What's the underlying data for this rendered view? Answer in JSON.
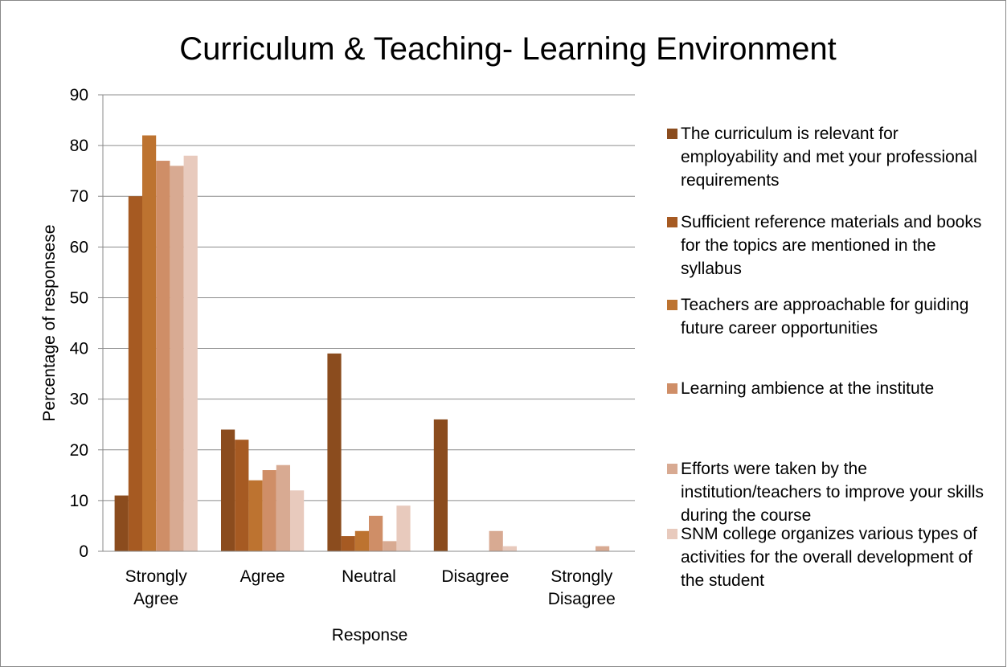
{
  "chart_data": {
    "type": "bar",
    "title": "Curriculum & Teaching- Learning Environment",
    "x_label": "Response",
    "y_label": "Percentage of responsese",
    "categories": [
      "Strongly Agree",
      "Agree",
      "Neutral",
      "Disagree",
      "Strongly Disagree"
    ],
    "series": [
      {
        "name": "The curriculum is relevant for employability and met your professional requirements",
        "color": "#8b4c1e",
        "values": [
          11,
          24,
          39,
          26,
          0
        ]
      },
      {
        "name": "Sufficient reference materials and books for the topics are mentioned in the syllabus",
        "color": "#a65a22",
        "values": [
          70,
          22,
          3,
          0,
          0
        ]
      },
      {
        "name": "Teachers are approachable for guiding future career opportunities",
        "color": "#bd7330",
        "values": [
          82,
          14,
          4,
          0,
          0
        ]
      },
      {
        "name": "Learning ambience at the institute",
        "color": "#cf8e67",
        "values": [
          77,
          16,
          7,
          0,
          0
        ]
      },
      {
        "name": "Efforts were taken by the institution/teachers to improve your skills during the course",
        "color": "#d8aa92",
        "values": [
          76,
          17,
          2,
          4,
          1
        ]
      },
      {
        "name": "SNM college organizes various types of activities for the overall development of the student",
        "color": "#e8cabd",
        "values": [
          78,
          12,
          9,
          1,
          0
        ]
      }
    ],
    "ylim": [
      0,
      90
    ],
    "yticks": [
      0,
      10,
      20,
      30,
      40,
      50,
      60,
      70,
      80,
      90
    ],
    "grid": true,
    "legend": "right"
  }
}
